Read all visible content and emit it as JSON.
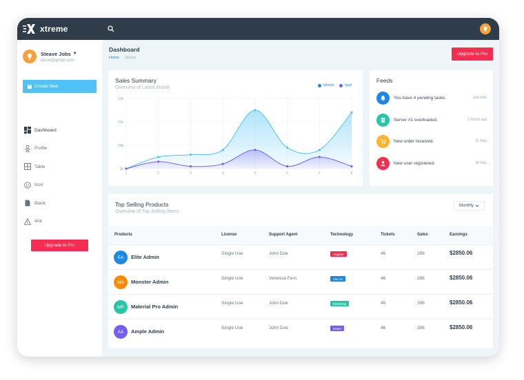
{
  "app": {
    "brand_name": "xtreme"
  },
  "sidebar": {
    "user_name": "Steave Jobs",
    "user_email": "varun@gmail.com",
    "create_label": "Create New",
    "items": [
      {
        "label": "Dashboard",
        "icon": "dashboard-icon"
      },
      {
        "label": "Profile",
        "icon": "profile-icon"
      },
      {
        "label": "Table",
        "icon": "table-icon"
      },
      {
        "label": "Icon",
        "icon": "smiley-icon"
      },
      {
        "label": "Blank",
        "icon": "blank-page-icon"
      },
      {
        "label": "404",
        "icon": "warning-icon"
      }
    ],
    "upgrade_label": "Upgrade to Pro"
  },
  "header": {
    "title": "Dashboard",
    "breadcrumb": [
      "Home",
      "Library"
    ],
    "upgrade_label": "Upgrade to Pro"
  },
  "sales": {
    "title": "Sales Summary",
    "subtitle": "Overview of Latest Month"
  },
  "chart_data": {
    "type": "area",
    "title": "Sales Summary",
    "subtitle": "Overview of Latest Month",
    "x": [
      1,
      2,
      3,
      4,
      5,
      6,
      7,
      8
    ],
    "series": [
      {
        "name": "Iphone",
        "color": "#4fc3f7",
        "values": [
          0,
          5,
          6,
          8,
          25,
          9,
          8,
          24
        ]
      },
      {
        "name": "Ipad",
        "color": "#7460ee",
        "values": [
          0,
          3,
          1,
          2,
          8,
          1,
          5,
          1
        ]
      }
    ],
    "ylim": [
      0,
      30
    ],
    "y_ticks": [
      "0k",
      "10k",
      "20k",
      "30k"
    ],
    "x_ticks": [
      "1",
      "2",
      "3",
      "4",
      "5",
      "6",
      "7",
      "8"
    ],
    "grid": true,
    "legend": "top-right"
  },
  "feeds": {
    "title": "Feeds",
    "items": [
      {
        "text": "You have 4 pending tasks.",
        "time": "Just Now",
        "icon": "bell-icon",
        "color": "#1e88e5"
      },
      {
        "text": "Server #1 overloaded.",
        "time": "2 Hours ago",
        "icon": "server-icon",
        "color": "#26c6a8"
      },
      {
        "text": "New order received.",
        "time": "31 May",
        "icon": "cart-icon",
        "color": "#ffb22b"
      },
      {
        "text": "New user registered.",
        "time": "30 May",
        "icon": "user-icon",
        "color": "#f62d51"
      }
    ]
  },
  "products": {
    "title": "Top Selling Products",
    "subtitle": "Overview of Top Selling Items",
    "filter": "Monthly",
    "columns": [
      "Products",
      "License",
      "Support Agent",
      "Technology",
      "Tickets",
      "Sales",
      "Earnings"
    ],
    "rows": [
      {
        "initials": "EA",
        "name": "Elite Admin",
        "license": "Single Use",
        "agent": "John Doe",
        "tech": "Angular",
        "tech_color": "#f62d51",
        "tickets": "46",
        "sales": "356",
        "earnings": "$2850.06",
        "avatar_color": "#1e88e5"
      },
      {
        "initials": "MA",
        "name": "Monster Admin",
        "license": "Single Use",
        "agent": "Venessa Fern",
        "tech": "Vue Js",
        "tech_color": "#1e88e5",
        "tickets": "46",
        "sales": "356",
        "earnings": "$2850.06",
        "avatar_color": "#fb8c00"
      },
      {
        "initials": "MP",
        "name": "Material Pro Admin",
        "license": "Single Use",
        "agent": "John Doe",
        "tech": "Bootstrap",
        "tech_color": "#26c6a8",
        "tickets": "46",
        "sales": "356",
        "earnings": "$2850.06",
        "avatar_color": "#26c6a8"
      },
      {
        "initials": "AA",
        "name": "Ample Admin",
        "license": "Single Use",
        "agent": "John Doe",
        "tech": "React",
        "tech_color": "#7460ee",
        "tickets": "46",
        "sales": "356",
        "earnings": "$2850.06",
        "avatar_color": "#7460ee"
      }
    ]
  }
}
